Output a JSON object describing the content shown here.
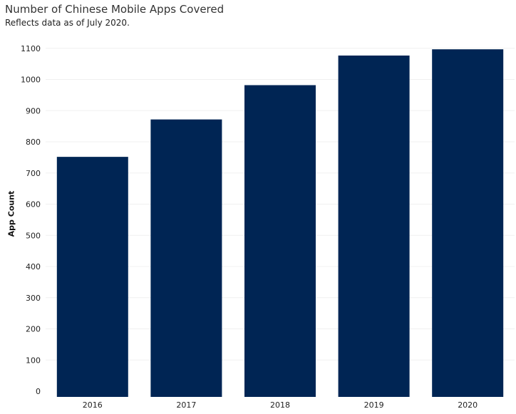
{
  "title": "Number of Chinese Mobile Apps Covered",
  "subtitle": "Reflects data as of July 2020.",
  "colors": {
    "bar": "#002554",
    "grid": "#f0f0f0",
    "tick_text": "#222222"
  },
  "chart_data": {
    "type": "bar",
    "categories": [
      "2016",
      "2017",
      "2018",
      "2019",
      "2020"
    ],
    "values": [
      770,
      890,
      1000,
      1095,
      1115
    ],
    "ylabel": "App Count",
    "xlabel": "",
    "ylim": [
      0,
      1150
    ],
    "yticks": [
      0,
      100,
      200,
      300,
      400,
      500,
      600,
      700,
      800,
      900,
      1000,
      1100
    ],
    "grid": true,
    "legend": "none"
  }
}
